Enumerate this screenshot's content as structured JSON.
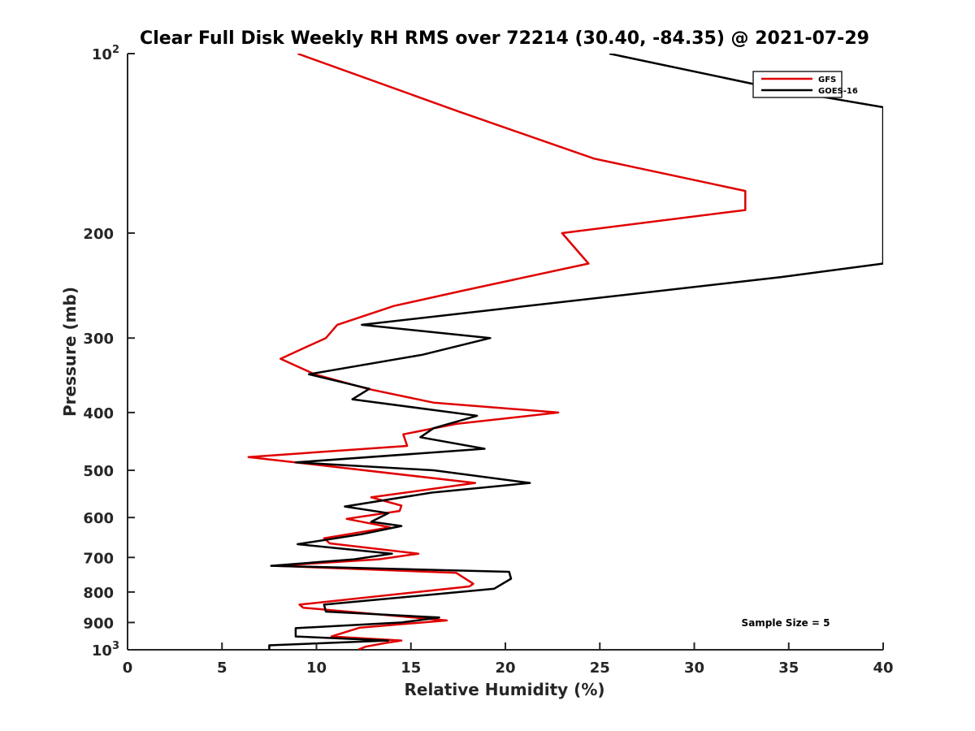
{
  "chart_data": {
    "type": "line",
    "title": "Clear Full Disk Weekly RH RMS over 72214 (30.40, -84.35) @ 2021-07-29",
    "xlabel": "Relative Humidity (%)",
    "ylabel": "Pressure (mb)",
    "xlim": [
      0,
      40
    ],
    "ylim": [
      1000,
      100
    ],
    "yscale": "log",
    "grid": false,
    "legend_position": "top-right",
    "x_ticks": [
      0,
      5,
      10,
      15,
      20,
      25,
      30,
      35,
      40
    ],
    "x_tick_labels": [
      "0",
      "5",
      "10",
      "15",
      "20",
      "25",
      "30",
      "35",
      "40"
    ],
    "y_ticks": [
      100,
      200,
      300,
      400,
      500,
      600,
      700,
      800,
      900,
      1000
    ],
    "y_tick_labels": [
      {
        "base": "10",
        "exp": "2"
      },
      {
        "base": "200",
        "exp": ""
      },
      {
        "base": "300",
        "exp": ""
      },
      {
        "base": "400",
        "exp": ""
      },
      {
        "base": "500",
        "exp": ""
      },
      {
        "base": "600",
        "exp": ""
      },
      {
        "base": "700",
        "exp": ""
      },
      {
        "base": "800",
        "exp": ""
      },
      {
        "base": "900",
        "exp": ""
      },
      {
        "base": "10",
        "exp": "3"
      }
    ],
    "annotation": "Sample Size = 5",
    "series": [
      {
        "name": "GFS",
        "color": "#e00000",
        "points": [
          {
            "x": 9.0,
            "p": 100
          },
          {
            "x": 17.5,
            "p": 125
          },
          {
            "x": 24.7,
            "p": 150
          },
          {
            "x": 32.7,
            "p": 170
          },
          {
            "x": 32.7,
            "p": 183
          },
          {
            "x": 23.0,
            "p": 200
          },
          {
            "x": 24.4,
            "p": 225
          },
          {
            "x": 17.7,
            "p": 250
          },
          {
            "x": 14.1,
            "p": 265
          },
          {
            "x": 11.1,
            "p": 285
          },
          {
            "x": 10.5,
            "p": 300
          },
          {
            "x": 8.1,
            "p": 325
          },
          {
            "x": 9.9,
            "p": 345
          },
          {
            "x": 12.7,
            "p": 365
          },
          {
            "x": 16.2,
            "p": 385
          },
          {
            "x": 22.8,
            "p": 400
          },
          {
            "x": 17.4,
            "p": 418
          },
          {
            "x": 14.6,
            "p": 435
          },
          {
            "x": 14.8,
            "p": 455
          },
          {
            "x": 6.4,
            "p": 475
          },
          {
            "x": 18.4,
            "p": 525
          },
          {
            "x": 12.9,
            "p": 555
          },
          {
            "x": 14.5,
            "p": 573
          },
          {
            "x": 14.4,
            "p": 585
          },
          {
            "x": 11.6,
            "p": 603
          },
          {
            "x": 13.9,
            "p": 623
          },
          {
            "x": 10.4,
            "p": 650
          },
          {
            "x": 10.7,
            "p": 663
          },
          {
            "x": 15.4,
            "p": 690
          },
          {
            "x": 13.3,
            "p": 705
          },
          {
            "x": 7.9,
            "p": 723
          },
          {
            "x": 17.4,
            "p": 743
          },
          {
            "x": 18.3,
            "p": 775
          },
          {
            "x": 18.1,
            "p": 783
          },
          {
            "x": 9.1,
            "p": 840
          },
          {
            "x": 9.3,
            "p": 850
          },
          {
            "x": 16.9,
            "p": 893
          },
          {
            "x": 12.3,
            "p": 918
          },
          {
            "x": 10.8,
            "p": 950
          },
          {
            "x": 14.5,
            "p": 965
          },
          {
            "x": 13.6,
            "p": 975
          },
          {
            "x": 12.6,
            "p": 988
          },
          {
            "x": 12.2,
            "p": 1000
          }
        ]
      },
      {
        "name": "GOES-16",
        "color": "#000000",
        "points": [
          {
            "x": 25.5,
            "p": 100
          },
          {
            "x": 34.6,
            "p": 115
          },
          {
            "x": 40.0,
            "p": 123
          },
          {
            "x": 40.0,
            "p": 225
          },
          {
            "x": 34.6,
            "p": 237
          },
          {
            "x": 12.4,
            "p": 285
          },
          {
            "x": 19.2,
            "p": 300
          },
          {
            "x": 15.6,
            "p": 320
          },
          {
            "x": 9.6,
            "p": 345
          },
          {
            "x": 12.8,
            "p": 365
          },
          {
            "x": 11.9,
            "p": 380
          },
          {
            "x": 18.5,
            "p": 405
          },
          {
            "x": 16.2,
            "p": 425
          },
          {
            "x": 15.5,
            "p": 440
          },
          {
            "x": 18.9,
            "p": 460
          },
          {
            "x": 8.9,
            "p": 485
          },
          {
            "x": 16.2,
            "p": 500
          },
          {
            "x": 21.3,
            "p": 525
          },
          {
            "x": 16.1,
            "p": 545
          },
          {
            "x": 11.5,
            "p": 575
          },
          {
            "x": 13.8,
            "p": 590
          },
          {
            "x": 12.9,
            "p": 610
          },
          {
            "x": 14.5,
            "p": 620
          },
          {
            "x": 12.4,
            "p": 640
          },
          {
            "x": 9.0,
            "p": 665
          },
          {
            "x": 14.0,
            "p": 690
          },
          {
            "x": 12.0,
            "p": 705
          },
          {
            "x": 7.6,
            "p": 723
          },
          {
            "x": 20.2,
            "p": 740
          },
          {
            "x": 20.3,
            "p": 760
          },
          {
            "x": 19.4,
            "p": 790
          },
          {
            "x": 10.4,
            "p": 840
          },
          {
            "x": 10.5,
            "p": 863
          },
          {
            "x": 16.5,
            "p": 883
          },
          {
            "x": 14.5,
            "p": 900
          },
          {
            "x": 8.9,
            "p": 920
          },
          {
            "x": 8.9,
            "p": 950
          },
          {
            "x": 13.8,
            "p": 965
          },
          {
            "x": 7.5,
            "p": 983
          },
          {
            "x": 7.5,
            "p": 1000
          }
        ]
      }
    ]
  }
}
